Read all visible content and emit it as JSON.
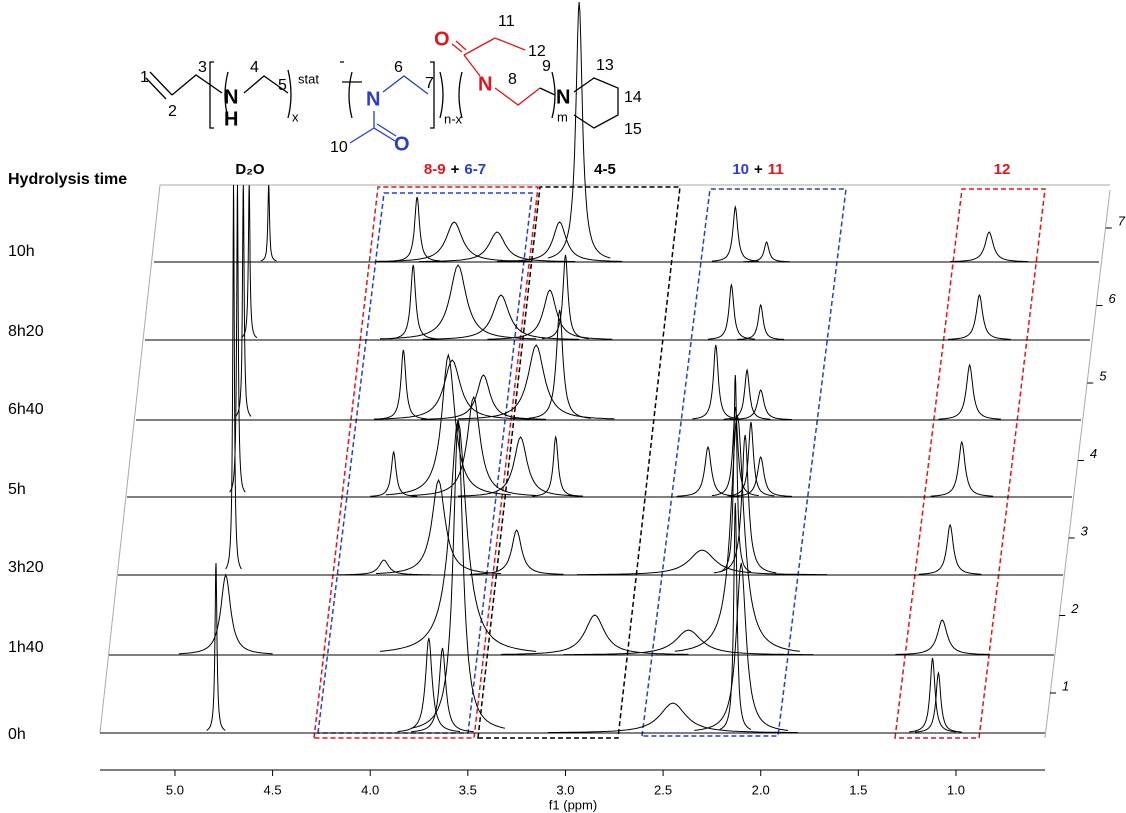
{
  "chart_data": {
    "type": "stacked-spectra",
    "ylabel": "Hydrolysis time",
    "xlabel": "f1 (ppm)",
    "xlim": [
      5.384,
      0.544
    ],
    "xticks": [
      {
        "value": 5,
        "label": "5.0"
      },
      4.5,
      {
        "value": 4,
        "label": "4.0"
      },
      3.5,
      {
        "value": 3,
        "label": "3.0"
      },
      2.5,
      {
        "value": 2,
        "label": "2.0"
      },
      1.5,
      {
        "value": 1,
        "label": "1.0"
      }
    ],
    "zticks": [
      1,
      2,
      3,
      4,
      5,
      6,
      7
    ],
    "color": "#000000",
    "series": [
      {
        "name": "0h",
        "peaks": [
          4.79,
          3.7,
          3.63,
          3.55,
          2.45,
          2.13,
          2.1,
          1.12,
          1.09
        ],
        "values": [
          170,
          95,
          85,
          310,
          30,
          230,
          170,
          75,
          60
        ],
        "widths": [
          0.006,
          0.02,
          0.02,
          0.03,
          0.08,
          0.01,
          0.03,
          0.015,
          0.015
        ]
      },
      {
        "name": "1h40",
        "peaks": [
          4.74,
          3.55,
          2.85,
          2.37,
          2.12,
          1.07
        ],
        "values": [
          80,
          235,
          40,
          25,
          240,
          35
        ],
        "widths": [
          0.03,
          0.05,
          0.06,
          0.08,
          0.04,
          0.03
        ]
      },
      {
        "name": "3h20",
        "peaks": [
          4.7,
          3.93,
          3.65,
          3.25,
          2.3,
          2.13,
          2.08,
          1.03
        ],
        "values": [
          390,
          15,
          95,
          45,
          25,
          200,
          140,
          50
        ],
        "widths": [
          0.005,
          0.03,
          0.04,
          0.03,
          0.08,
          0.01,
          0.02,
          0.02
        ]
      },
      {
        "name": "5h",
        "peaks": [
          4.68,
          3.88,
          3.6,
          3.47,
          3.23,
          3.05,
          2.27,
          2.13,
          2.05,
          2.0,
          0.97
        ],
        "values": [
          312,
          45,
          142,
          100,
          60,
          60,
          50,
          90,
          75,
          40,
          55
        ],
        "widths": [
          0.005,
          0.015,
          0.04,
          0.04,
          0.04,
          0.015,
          0.02,
          0.015,
          0.015,
          0.02,
          0.02
        ]
      },
      {
        "name": "6h40",
        "peaks": [
          4.65,
          3.83,
          3.58,
          3.42,
          3.15,
          3.03,
          2.23,
          2.07,
          2.0,
          0.93
        ],
        "values": [
          235,
          70,
          60,
          45,
          75,
          110,
          75,
          50,
          30,
          55
        ],
        "widths": [
          0.005,
          0.015,
          0.05,
          0.04,
          0.05,
          0.02,
          0.015,
          0.015,
          0.02,
          0.02
        ]
      },
      {
        "name": "8h20",
        "peaks": [
          4.62,
          3.78,
          3.55,
          3.33,
          3.08,
          3.0,
          2.15,
          2.0,
          0.88
        ],
        "values": [
          155,
          75,
          75,
          45,
          50,
          85,
          55,
          35,
          45
        ],
        "widths": [
          0.005,
          0.015,
          0.05,
          0.05,
          0.04,
          0.015,
          0.015,
          0.015,
          0.02
        ]
      },
      {
        "name": "10h",
        "peaks": [
          4.52,
          3.76,
          3.57,
          3.35,
          3.03,
          2.93,
          2.13,
          1.97,
          0.83
        ],
        "values": [
          77,
          65,
          40,
          30,
          40,
          260,
          55,
          20,
          30
        ],
        "widths": [
          0.005,
          0.015,
          0.05,
          0.05,
          0.04,
          0.02,
          0.015,
          0.015,
          0.025
        ]
      }
    ],
    "regions": [
      {
        "parts": [
          "D₂O"
        ],
        "colors": [
          "#000000"
        ]
      },
      {
        "parts": [
          "8-9",
          "+",
          "6-7"
        ],
        "colors": [
          "#e8141b",
          "#000000",
          "#2a3bd6"
        ]
      },
      {
        "parts": [
          "4-5"
        ],
        "colors": [
          "#000000"
        ]
      },
      {
        "parts": [
          "10",
          "+",
          "11"
        ],
        "colors": [
          "#2a3bd6",
          "#000000",
          "#e8141b"
        ]
      },
      {
        "parts": [
          "12"
        ],
        "colors": [
          "#e8141b"
        ]
      }
    ]
  },
  "structure": {
    "labels": [
      "1",
      "2",
      "3",
      "4",
      "5",
      "x",
      "stat",
      "6",
      "7",
      "n-x",
      "8",
      "9",
      "m",
      "13",
      "14",
      "15",
      "10",
      "11",
      "12",
      "N",
      "H",
      "N",
      "O",
      "N",
      "O",
      "N"
    ]
  }
}
